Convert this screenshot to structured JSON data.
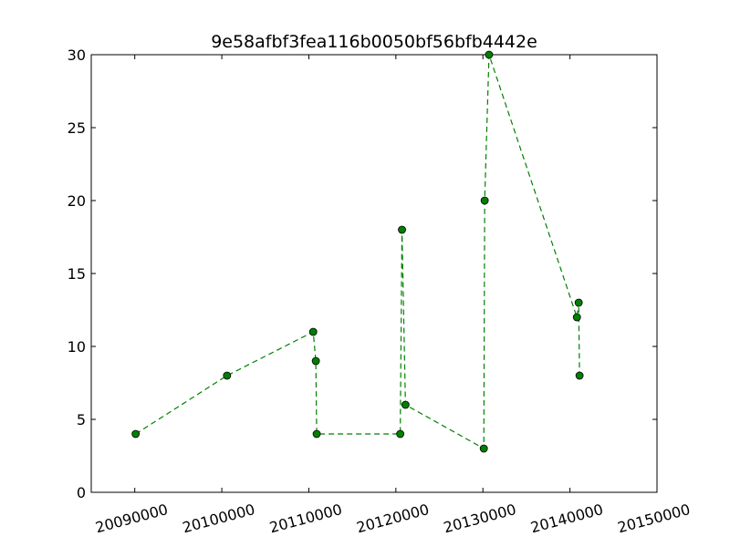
{
  "chart_data": {
    "type": "line",
    "title": "9e58afbf3fea116b0050bf56bfb4442e",
    "xlabel": "",
    "ylabel": "",
    "xlim": [
      20085000,
      20150000
    ],
    "ylim": [
      0,
      30
    ],
    "xticks": [
      20090000,
      20100000,
      20110000,
      20120000,
      20130000,
      20140000,
      20150000
    ],
    "yticks": [
      0,
      5,
      10,
      15,
      20,
      25,
      30
    ],
    "grid": false,
    "legend": "none",
    "line_style": "dashed",
    "marker": "circle",
    "color": "#008000",
    "series": [
      {
        "points": [
          {
            "x": 20090101,
            "y": 4
          },
          {
            "x": 20100601,
            "y": 8
          },
          {
            "x": 20110501,
            "y": 11
          },
          {
            "x": 20110801,
            "y": 9
          },
          {
            "x": 20110901,
            "y": 4
          },
          {
            "x": 20120501,
            "y": 4
          },
          {
            "x": 20120701,
            "y": 18
          },
          {
            "x": 20121101,
            "y": 6
          },
          {
            "x": 20130101,
            "y": 3
          },
          {
            "x": 20130201,
            "y": 20
          },
          {
            "x": 20130701,
            "y": 30
          },
          {
            "x": 20140801,
            "y": 12
          },
          {
            "x": 20141001,
            "y": 13
          },
          {
            "x": 20141101,
            "y": 8
          }
        ]
      }
    ]
  }
}
